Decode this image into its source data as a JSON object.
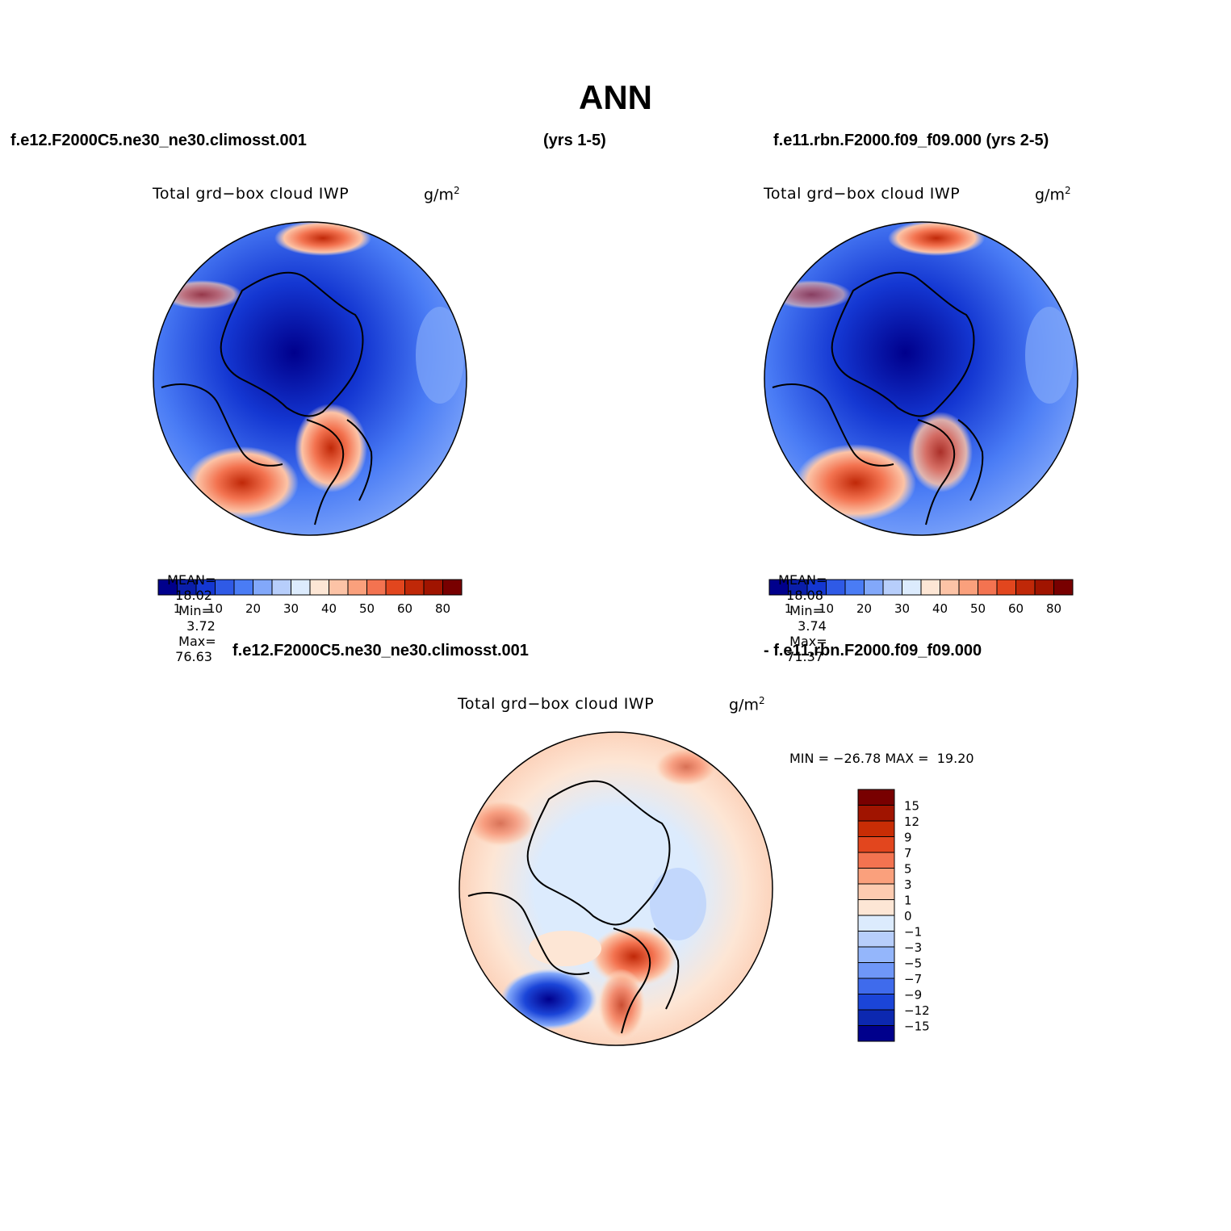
{
  "title": "ANN",
  "header": {
    "left_case": "f.e12.F2000C5.ne30_ne30.climosst.001",
    "left_years": "(yrs 1-5)",
    "right_case": "f.e11.rbn.F2000.f09_f09.000 (yrs 2-5)"
  },
  "diff_header": {
    "left": "f.e12.F2000C5.ne30_ne30.climosst.001",
    "right": "- f.e11.rbn.F2000.f09_f09.000"
  },
  "panels": [
    {
      "variable": "Total grd−box cloud IWP",
      "units_base": "g/m",
      "units_exp": "2",
      "mean_label": "MEAN=",
      "mean": "18.02",
      "min_label": "Min=",
      "min": "3.72",
      "max_label": "Max=",
      "max": "76.63"
    },
    {
      "variable": "Total grd−box cloud IWP",
      "units_base": "g/m",
      "units_exp": "2",
      "mean_label": "MEAN=",
      "mean": "18.08",
      "min_label": "Min=",
      "min": "3.74",
      "max_label": "Max=",
      "max": "71.37"
    }
  ],
  "diff_panel": {
    "variable": "Total grd−box cloud IWP",
    "units_base": "g/m",
    "units_exp": "2",
    "minmax": "MIN = −26.78 MAX =  19.20"
  },
  "colorbar_abs": {
    "colors": [
      "#00008c",
      "#0a1eaa",
      "#1437d2",
      "#2f5ae6",
      "#4a7cf5",
      "#82a8fa",
      "#b7cefb",
      "#dcebfd",
      "#fde6d5",
      "#fcc3a6",
      "#faa07c",
      "#f37350",
      "#e2461e",
      "#c02808",
      "#a01400",
      "#780000"
    ],
    "labels": [
      "1",
      "10",
      "20",
      "30",
      "40",
      "50",
      "60",
      "80"
    ]
  },
  "colorbar_diff": {
    "colors": [
      "#780000",
      "#a01400",
      "#c82d05",
      "#e2461e",
      "#f37350",
      "#faa07c",
      "#fdcbb0",
      "#fde6d5",
      "#dcebfd",
      "#b7cefb",
      "#94b6fb",
      "#6f97f8",
      "#3f6bec",
      "#1b45d8",
      "#0c28b0",
      "#00008c"
    ],
    "labels": [
      "15",
      "12",
      "9",
      "7",
      "5",
      "3",
      "1",
      "0",
      "−1",
      "−3",
      "−5",
      "−7",
      "−9",
      "−12",
      "−15"
    ]
  },
  "map_icons": [
    "polar-stereographic-map",
    "coastline-outline"
  ]
}
